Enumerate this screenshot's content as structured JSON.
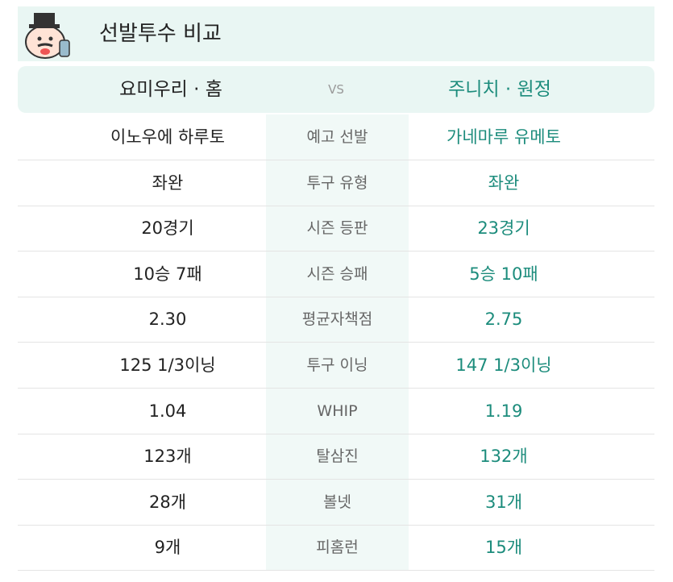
{
  "header": {
    "title": "선발투수 비교"
  },
  "teams": {
    "home": "요미우리 · 홈",
    "vs": "VS",
    "away": "주니치 · 원정"
  },
  "rows": [
    [
      "이노우에 하루토",
      "예고 선발",
      "가네마루 유메토"
    ],
    [
      "좌완",
      "투구 유형",
      "좌완"
    ],
    [
      "20경기",
      "시즌 등판",
      "23경기"
    ],
    [
      "10승 7패",
      "시즌 승패",
      "5승 10패"
    ],
    [
      "2.30",
      "평균자책점",
      "2.75"
    ],
    [
      "125 1/3이닝",
      "투구 이닝",
      "147 1/3이닝"
    ],
    [
      "1.04",
      "WHIP",
      "1.19"
    ],
    [
      "123개",
      "탈삼진",
      "132개"
    ],
    [
      "28개",
      "볼넷",
      "31개"
    ],
    [
      "9개",
      "피홈런",
      "15개"
    ]
  ]
}
